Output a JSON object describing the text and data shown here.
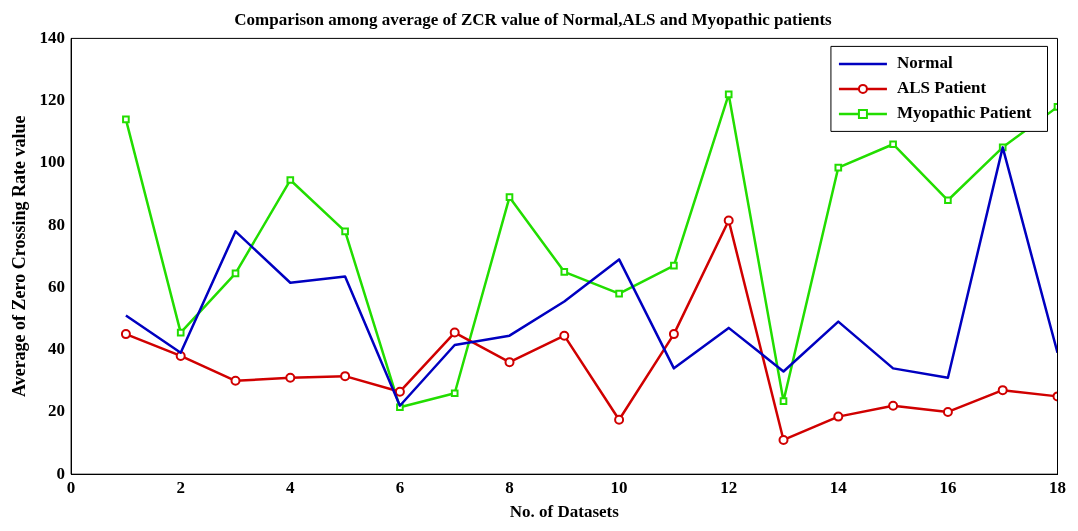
{
  "chart_data": {
    "type": "line",
    "title": "Comparison among average of ZCR value of Normal,ALS and Myopathic patients",
    "xlabel": "No. of Datasets",
    "ylabel": "Average of Zero Crossing Rate value",
    "x": [
      1,
      2,
      3,
      4,
      5,
      6,
      7,
      8,
      9,
      10,
      11,
      12,
      13,
      14,
      15,
      16,
      17,
      18
    ],
    "xlim": [
      0,
      18
    ],
    "xticks": [
      0,
      2,
      4,
      6,
      8,
      10,
      12,
      14,
      16,
      18
    ],
    "ylim": [
      0,
      140
    ],
    "yticks": [
      0,
      20,
      40,
      60,
      80,
      100,
      120,
      140
    ],
    "legend": "top right",
    "grid": false,
    "series": [
      {
        "name": "Normal",
        "color": "#0000c0",
        "marker": "none",
        "values": [
          51,
          39,
          78,
          61.5,
          63.5,
          22,
          41.5,
          44.5,
          55.5,
          69,
          34,
          47,
          33,
          49,
          34,
          31,
          105,
          39
        ]
      },
      {
        "name": "ALS Patient",
        "color": "#d00000",
        "marker": "circle",
        "values": [
          45,
          38,
          30,
          31,
          31.5,
          26.5,
          45.5,
          36,
          44.5,
          17.5,
          45,
          81.5,
          11,
          18.5,
          22,
          20,
          27,
          25
        ]
      },
      {
        "name": "Myopathic Patient",
        "color": "#22dd00",
        "marker": "square",
        "values": [
          114,
          45.5,
          64.5,
          94.5,
          78,
          21.5,
          26,
          89,
          65,
          58,
          67,
          122,
          23.5,
          98.5,
          106,
          88,
          105,
          118
        ]
      }
    ]
  }
}
